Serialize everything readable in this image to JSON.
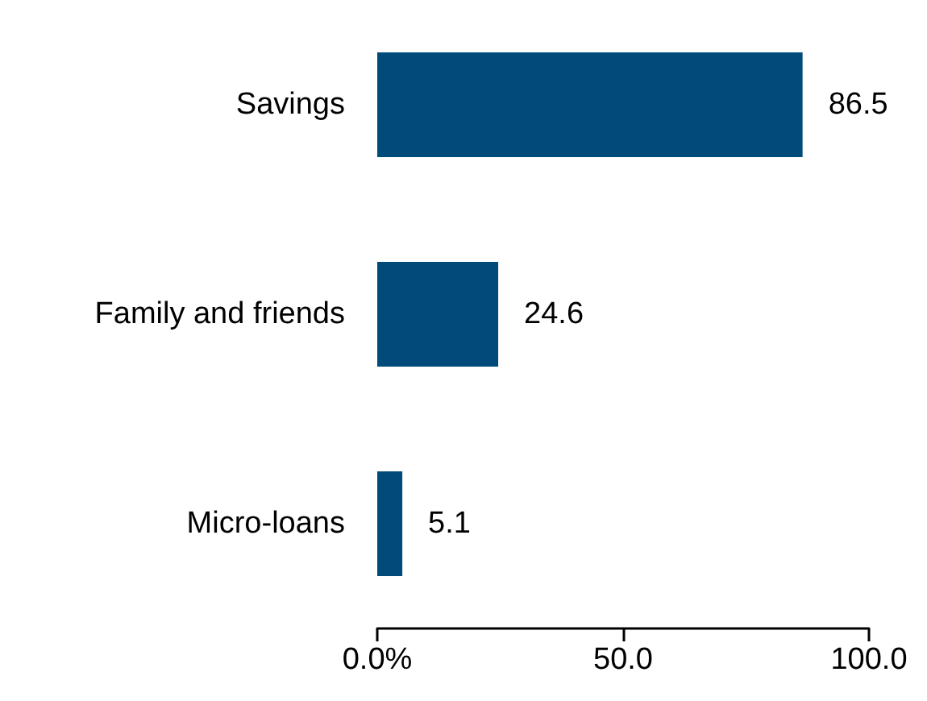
{
  "chart_data": {
    "type": "bar",
    "orientation": "horizontal",
    "categories": [
      "Savings",
      "Family and friends",
      "Micro-loans"
    ],
    "values": [
      86.5,
      24.6,
      5.1
    ],
    "color": "#004b7a",
    "xlim": [
      0,
      100
    ],
    "xticks": [
      {
        "value": 0,
        "label": "0.0%"
      },
      {
        "value": 50,
        "label": "50.0"
      },
      {
        "value": 100,
        "label": "100.0"
      }
    ],
    "data_labels": true
  }
}
